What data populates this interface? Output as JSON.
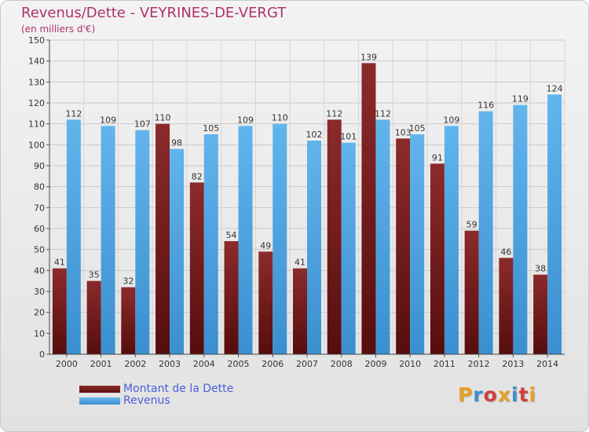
{
  "title": "Revenus/Dette - VEYRINES-DE-VERGT",
  "subtitle": "(en milliers d'€)",
  "logo_text": "Proxiti",
  "logo_colors": [
    "#e8a020",
    "#3a8fd0",
    "#d04040",
    "#e8a020",
    "#3a8fd0",
    "#d04040",
    "#e8a020"
  ],
  "colors": {
    "debt": "#6e1818",
    "revenue": "#4aa3e2",
    "title": "#b0306a",
    "legend_text": "#4a5fd8"
  },
  "legend": [
    {
      "label": "Montant de la Dette",
      "series": "debt"
    },
    {
      "label": "Revenus",
      "series": "revenue"
    }
  ],
  "chart_data": {
    "type": "bar",
    "categories": [
      "2000",
      "2001",
      "2002",
      "2003",
      "2004",
      "2005",
      "2006",
      "2007",
      "2008",
      "2009",
      "2010",
      "2011",
      "2012",
      "2013",
      "2014"
    ],
    "series": [
      {
        "name": "Montant de la Dette",
        "values": [
          41,
          35,
          32,
          110,
          82,
          54,
          49,
          41,
          112,
          139,
          103,
          91,
          59,
          46,
          38
        ]
      },
      {
        "name": "Revenus",
        "values": [
          112,
          109,
          107,
          98,
          105,
          109,
          110,
          102,
          101,
          112,
          105,
          109,
          116,
          119,
          124
        ]
      }
    ],
    "title": "Revenus/Dette - VEYRINES-DE-VERGT",
    "subtitle": "(en milliers d'€)",
    "xlabel": "",
    "ylabel": "",
    "ylim": [
      0,
      150
    ],
    "ytick_step": 10,
    "grid": true,
    "legend_position": "bottom-left"
  }
}
